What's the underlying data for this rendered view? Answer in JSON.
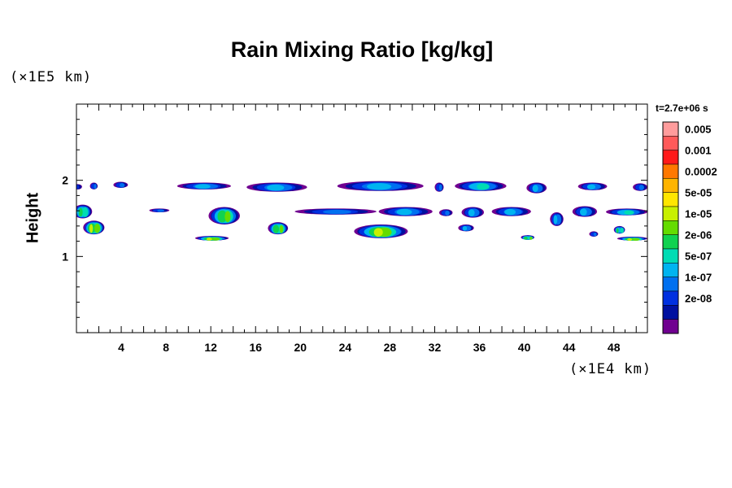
{
  "chart_data": {
    "type": "heatmap",
    "title": "Rain Mixing Ratio [kg/kg]",
    "ylabel": "Height",
    "xunit": "(×1E4 km)",
    "yunit": "(×1E5 km)",
    "time_label": "t=2.7e+06 s",
    "xlim": [
      0,
      51
    ],
    "ylim": [
      0,
      3
    ],
    "x_ticks": [
      4,
      8,
      12,
      16,
      20,
      24,
      28,
      32,
      36,
      40,
      44,
      48
    ],
    "y_ticks": [
      1,
      2
    ],
    "colorbar": {
      "labels": [
        "0.005",
        "0.001",
        "0.0002",
        "5e-05",
        "1e-05",
        "2e-06",
        "5e-07",
        "1e-07",
        "2e-08"
      ],
      "colors": [
        "#ff9c9c",
        "#ff5a5a",
        "#ff1a1a",
        "#ff7800",
        "#ffb400",
        "#ffe600",
        "#c8f000",
        "#64dc00",
        "#10d250",
        "#00dcb4",
        "#00b4f0",
        "#0070f0",
        "#0030e0",
        "#0010a0",
        "#700090"
      ]
    },
    "layers": [
      {
        "x": [
          0,
          51
        ],
        "y": 1.9,
        "level": 3
      },
      {
        "x": [
          0,
          51
        ],
        "y": 1.58,
        "level": 3
      },
      {
        "x": [
          0,
          51
        ],
        "y": 1.22,
        "level": 7
      }
    ],
    "blobs": [
      {
        "x": [
          -0.3,
          0.5
        ],
        "y": [
          1.88,
          1.95
        ],
        "level": 2
      },
      {
        "x": [
          1.2,
          1.9
        ],
        "y": [
          1.88,
          1.97
        ],
        "level": 3
      },
      {
        "x": [
          3.3,
          4.6
        ],
        "y": [
          1.9,
          1.98
        ],
        "level": 3
      },
      {
        "x": [
          9.0,
          13.8
        ],
        "y": [
          1.88,
          1.97
        ],
        "level": 4
      },
      {
        "x": [
          15.2,
          20.6
        ],
        "y": [
          1.85,
          1.97
        ],
        "level": 4
      },
      {
        "x": [
          23.3,
          31.0
        ],
        "y": [
          1.86,
          1.99
        ],
        "level": 4
      },
      {
        "x": [
          32.0,
          32.8
        ],
        "y": [
          1.85,
          1.97
        ],
        "level": 3
      },
      {
        "x": [
          33.8,
          38.4
        ],
        "y": [
          1.86,
          1.99
        ],
        "level": 5
      },
      {
        "x": [
          40.2,
          42.0
        ],
        "y": [
          1.83,
          1.97
        ],
        "level": 4
      },
      {
        "x": [
          44.8,
          47.4
        ],
        "y": [
          1.87,
          1.97
        ],
        "level": 4
      },
      {
        "x": [
          49.7,
          51.0
        ],
        "y": [
          1.86,
          1.96
        ],
        "level": 3
      },
      {
        "x": [
          -0.3,
          1.4
        ],
        "y": [
          1.5,
          1.68
        ],
        "level": 6
      },
      {
        "x": [
          0.6,
          2.5
        ],
        "y": [
          1.29,
          1.47
        ],
        "level": 8
      },
      {
        "x": [
          6.5,
          8.3
        ],
        "y": [
          1.58,
          1.63
        ],
        "level": 3
      },
      {
        "x": [
          11.8,
          14.6
        ],
        "y": [
          1.42,
          1.65
        ],
        "level": 7
      },
      {
        "x": [
          17.1,
          18.9
        ],
        "y": [
          1.29,
          1.45
        ],
        "level": 7
      },
      {
        "x": [
          19.5,
          26.8
        ],
        "y": [
          1.55,
          1.63
        ],
        "level": 3
      },
      {
        "x": [
          27.0,
          31.8
        ],
        "y": [
          1.53,
          1.65
        ],
        "level": 4
      },
      {
        "x": [
          32.4,
          33.6
        ],
        "y": [
          1.53,
          1.62
        ],
        "level": 3
      },
      {
        "x": [
          34.4,
          36.4
        ],
        "y": [
          1.51,
          1.65
        ],
        "level": 4
      },
      {
        "x": [
          37.1,
          40.6
        ],
        "y": [
          1.53,
          1.65
        ],
        "level": 4
      },
      {
        "x": [
          42.3,
          43.5
        ],
        "y": [
          1.4,
          1.58
        ],
        "level": 4
      },
      {
        "x": [
          44.3,
          46.5
        ],
        "y": [
          1.52,
          1.66
        ],
        "level": 4
      },
      {
        "x": [
          47.3,
          51.0
        ],
        "y": [
          1.54,
          1.63
        ],
        "level": 5
      },
      {
        "x": [
          24.8,
          29.6
        ],
        "y": [
          1.24,
          1.42
        ],
        "level": 8
      },
      {
        "x": [
          10.6,
          13.6
        ],
        "y": [
          1.21,
          1.27
        ],
        "level": 8
      },
      {
        "x": [
          39.7,
          40.9
        ],
        "y": [
          1.22,
          1.28
        ],
        "level": 7
      },
      {
        "x": [
          48.3,
          51.0
        ],
        "y": [
          1.21,
          1.26
        ],
        "level": 8
      },
      {
        "x": [
          34.1,
          35.5
        ],
        "y": [
          1.33,
          1.42
        ],
        "level": 4
      },
      {
        "x": [
          45.8,
          46.6
        ],
        "y": [
          1.26,
          1.33
        ],
        "level": 3
      },
      {
        "x": [
          48.0,
          49.0
        ],
        "y": [
          1.3,
          1.4
        ],
        "level": 6
      }
    ]
  }
}
